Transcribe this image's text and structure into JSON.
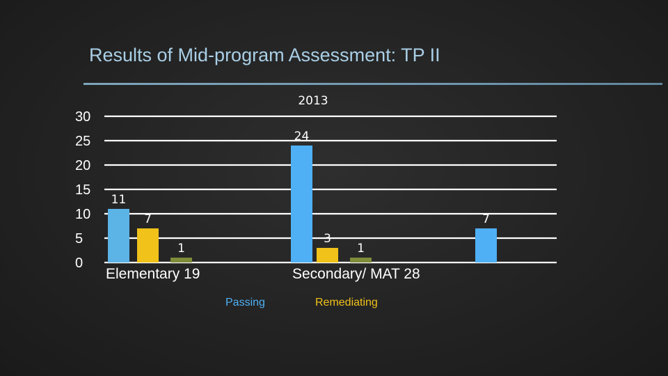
{
  "slide": {
    "title": "Results of Mid-program Assessment: TP II"
  },
  "chart_data": {
    "type": "bar",
    "title": "2013",
    "y_ticks": [
      "30",
      "25",
      "20",
      "15",
      "10",
      "5",
      "0"
    ],
    "ylim": [
      0,
      30
    ],
    "grid": true,
    "categories": [
      "Elementary 19",
      "Secondary/ MAT 28"
    ],
    "category_groups": [
      {
        "label": "Elementary 19",
        "bars": [
          {
            "value": 11,
            "label": "11",
            "color": "#5bb3e6"
          },
          {
            "value": 7,
            "label": "7",
            "color": "#f0c21a"
          },
          {
            "value": 1,
            "label": "1",
            "color": "#7f8c3a"
          }
        ]
      },
      {
        "label": "Secondary/ MAT 28",
        "bars": [
          {
            "value": 24,
            "label": "24",
            "color": "#4fb0f5"
          },
          {
            "value": 3,
            "label": "3",
            "color": "#f0c21a"
          },
          {
            "value": 1,
            "label": "1",
            "color": "#7f8c3a"
          },
          {
            "value": 7,
            "label": "7",
            "color": "#4fb0f5"
          }
        ]
      }
    ],
    "legend": [
      {
        "label": "Passing",
        "color": "#4fb0f5"
      },
      {
        "label": "Remediating",
        "color": "#f0c21a"
      }
    ],
    "legend_position": "bottom"
  }
}
